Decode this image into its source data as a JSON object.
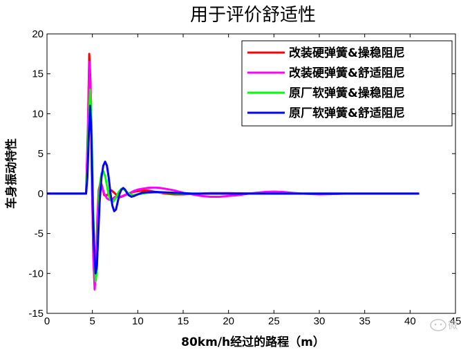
{
  "chart_data": {
    "type": "line",
    "title": "用于评价舒适性",
    "xlabel": "80km/h经过的路程（m）",
    "ylabel": "车身振动特性",
    "xlim": [
      0,
      45
    ],
    "ylim": [
      -15,
      20
    ],
    "xticks": [
      0,
      5,
      10,
      15,
      20,
      25,
      30,
      35,
      40,
      45
    ],
    "yticks": [
      -15,
      -10,
      -5,
      0,
      5,
      10,
      15,
      20
    ],
    "grid": false,
    "legend_position": "top-right",
    "series": [
      {
        "name": "改装硬弹簧&操稳阻尼",
        "color": "#ff0000",
        "x": [
          0,
          4.3,
          4.5,
          4.65,
          4.8,
          4.95,
          5.1,
          5.25,
          5.4,
          5.55,
          5.7,
          5.9,
          6.1,
          6.3,
          6.5,
          6.7,
          6.9,
          7.1,
          7.3,
          7.5,
          7.7,
          7.9,
          8.2,
          8.6,
          9.0,
          9.5,
          10,
          11,
          12,
          13,
          14,
          15,
          16,
          17,
          18,
          19,
          20,
          21,
          22,
          24,
          26,
          28,
          30,
          33,
          36,
          40,
          41
        ],
        "y": [
          0,
          0,
          8,
          17.5,
          14,
          2,
          -8,
          -11.5,
          -9,
          -3,
          0.5,
          1.5,
          0.8,
          -0.2,
          -0.3,
          -0.1,
          0.3,
          0.4,
          0.2,
          0,
          -0.2,
          -0.5,
          -0.4,
          -0.2,
          0,
          0.2,
          0.3,
          0.4,
          0.2,
          0,
          -0.1,
          -0.1,
          -0.05,
          0,
          0.05,
          0.05,
          0.05,
          0.03,
          0.02,
          0.02,
          0,
          0,
          0,
          0,
          0,
          0,
          0
        ]
      },
      {
        "name": "改装硬弹簧&舒适阻尼",
        "color": "#ff00ff",
        "x": [
          0,
          4.3,
          4.5,
          4.65,
          4.8,
          4.95,
          5.1,
          5.25,
          5.4,
          5.55,
          5.7,
          5.9,
          6.1,
          6.3,
          6.6,
          6.9,
          7.2,
          7.5,
          7.8,
          8.1,
          8.5,
          9.0,
          9.5,
          10,
          10.5,
          11,
          11.5,
          12,
          12.5,
          13,
          14,
          15,
          16,
          17,
          18,
          19,
          20,
          21,
          22,
          23,
          24,
          25,
          26,
          27,
          28,
          30,
          32,
          33
        ],
        "y": [
          0,
          0,
          7,
          16.5,
          13,
          1.5,
          -7.5,
          -12,
          -9.5,
          -3.5,
          0,
          1.2,
          0.7,
          0,
          -0.6,
          -0.8,
          -0.7,
          -0.4,
          -0.3,
          -0.4,
          -0.2,
          0,
          0.3,
          0.5,
          0.6,
          0.7,
          0.75,
          0.75,
          0.7,
          0.6,
          0.4,
          0.1,
          -0.1,
          -0.3,
          -0.4,
          -0.4,
          -0.3,
          -0.2,
          -0.05,
          0.1,
          0.2,
          0.25,
          0.2,
          0.1,
          0,
          -0.1,
          -0.05,
          0
        ]
      },
      {
        "name": "原厂软弹簧&操稳阻尼",
        "color": "#00ff00",
        "x": [
          0,
          4.3,
          4.45,
          4.6,
          4.75,
          4.9,
          5.05,
          5.2,
          5.35,
          5.5,
          5.65,
          5.8,
          6.0,
          6.2,
          6.4,
          6.6,
          6.8,
          7.0,
          7.3,
          7.6,
          7.9,
          8.2,
          8.5,
          8.8,
          9.1,
          9.5,
          10,
          11,
          12,
          13,
          14,
          16,
          18,
          20,
          25,
          30,
          35,
          41
        ],
        "y": [
          0,
          0,
          3,
          9,
          13,
          9,
          0,
          -7,
          -11,
          -9.5,
          -4,
          1,
          2.5,
          2.8,
          2.2,
          1.0,
          -0.2,
          -0.8,
          -1.0,
          -0.5,
          0.2,
          0.6,
          0.5,
          0.2,
          -0.1,
          -0.2,
          -0.1,
          0.1,
          0.15,
          0.1,
          0.05,
          0,
          0,
          0,
          0,
          0,
          0,
          0
        ]
      },
      {
        "name": "原厂软弹簧&舒适阻尼",
        "color": "#0000ff",
        "x": [
          0,
          4.3,
          4.45,
          4.6,
          4.75,
          4.9,
          5.05,
          5.2,
          5.35,
          5.5,
          5.65,
          5.8,
          6.0,
          6.2,
          6.4,
          6.6,
          6.8,
          7.0,
          7.2,
          7.4,
          7.6,
          7.8,
          8.0,
          8.2,
          8.4,
          8.6,
          8.8,
          9.0,
          9.3,
          9.6,
          10,
          10.5,
          11,
          12,
          13,
          14,
          15,
          16,
          18,
          20,
          25,
          30,
          35,
          41
        ],
        "y": [
          0,
          0,
          2,
          7,
          11,
          7,
          -2,
          -7,
          -10,
          -9,
          -5,
          -1,
          2,
          3.5,
          4.0,
          3.5,
          2,
          0,
          -1.5,
          -2.2,
          -2.0,
          -1.0,
          0,
          0.5,
          0.7,
          0.5,
          0.1,
          -0.2,
          -0.4,
          -0.3,
          -0.1,
          0.1,
          0.15,
          0.2,
          0.15,
          0.1,
          0.05,
          0,
          0,
          0,
          0,
          0,
          0,
          0
        ]
      }
    ]
  },
  "watermark": {
    "icon": "wechat-icon",
    "text": "微"
  }
}
